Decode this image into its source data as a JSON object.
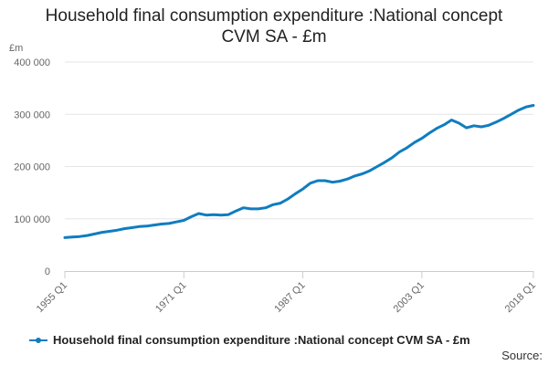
{
  "title_lines": [
    "Household final consumption expenditure :National concept",
    "CVM SA - £m"
  ],
  "source_label": "Source:",
  "colors": {
    "series": "#0f7dc0",
    "grid": "#e6e6e6",
    "axis": "#cccccc"
  },
  "chart_data": {
    "type": "line",
    "unit_label": "£m",
    "ylim": [
      0,
      400000
    ],
    "yticks": [
      0,
      100000,
      200000,
      300000,
      400000
    ],
    "ytick_labels": [
      "0",
      "100 000",
      "200 000",
      "300 000",
      "400 000"
    ],
    "xticks": [
      1955,
      1971,
      1987,
      2003,
      2018
    ],
    "xtick_labels": [
      "1955 Q1",
      "1971 Q1",
      "1987 Q1",
      "2003 Q1",
      "2018 Q1"
    ],
    "grid": true,
    "legend_position": "bottom",
    "series": [
      {
        "name": "Household final consumption expenditure :National concept CVM SA - £m",
        "x": [
          1955,
          1956,
          1957,
          1958,
          1959,
          1960,
          1961,
          1962,
          1963,
          1964,
          1965,
          1966,
          1967,
          1968,
          1969,
          1970,
          1971,
          1972,
          1973,
          1974,
          1975,
          1976,
          1977,
          1978,
          1979,
          1980,
          1981,
          1982,
          1983,
          1984,
          1985,
          1986,
          1987,
          1988,
          1989,
          1990,
          1991,
          1992,
          1993,
          1994,
          1995,
          1996,
          1997,
          1998,
          1999,
          2000,
          2001,
          2002,
          2003,
          2004,
          2005,
          2006,
          2007,
          2008,
          2009,
          2010,
          2011,
          2012,
          2013,
          2014,
          2015,
          2016,
          2017,
          2018
        ],
        "values": [
          64000,
          65000,
          66000,
          68000,
          71000,
          74000,
          76000,
          78000,
          81000,
          83000,
          85000,
          86000,
          88000,
          90000,
          91000,
          94000,
          97000,
          104000,
          110000,
          107000,
          108000,
          107000,
          108000,
          115000,
          121000,
          119000,
          119000,
          121000,
          127000,
          130000,
          138000,
          148000,
          157000,
          168000,
          173000,
          173000,
          170000,
          172000,
          176000,
          182000,
          186000,
          192000,
          200000,
          208000,
          217000,
          228000,
          236000,
          246000,
          254000,
          264000,
          273000,
          280000,
          289000,
          283000,
          274000,
          278000,
          276000,
          279000,
          285000,
          292000,
          300000,
          308000,
          314000,
          317000
        ]
      }
    ]
  }
}
